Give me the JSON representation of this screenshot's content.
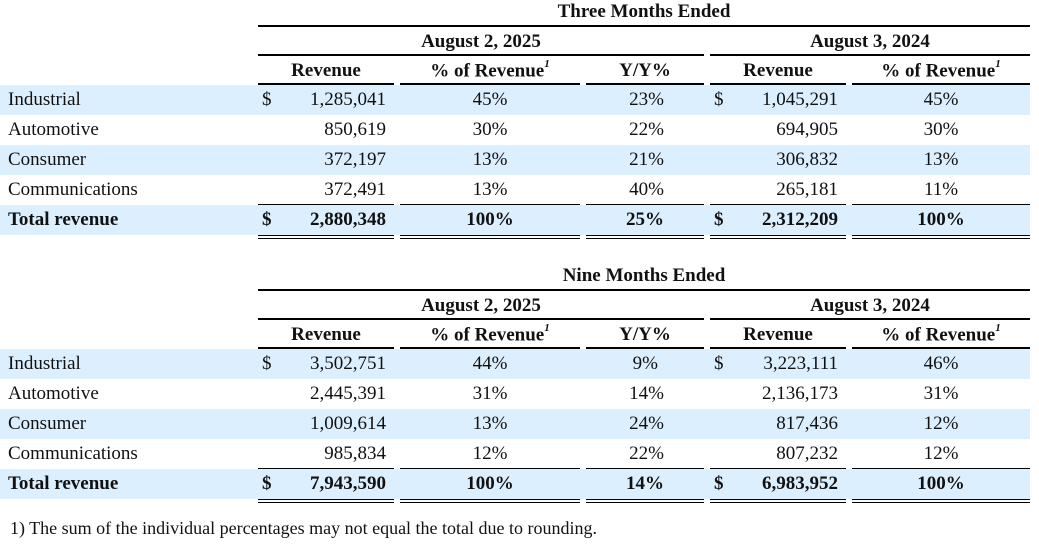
{
  "three_months": {
    "title": "Three Months Ended",
    "period_a": "August 2, 2025",
    "period_b": "August 3, 2024",
    "col_revenue": "Revenue",
    "col_pct": "% of Revenue",
    "col_pct_sup": "1",
    "col_yy": "Y/Y%",
    "currency": "$",
    "rows": [
      {
        "label": "Industrial",
        "rev_a": "1,285,041",
        "pct_a": "45%",
        "yy": "23%",
        "rev_b": "1,045,291",
        "pct_b": "45%"
      },
      {
        "label": "Automotive",
        "rev_a": "850,619",
        "pct_a": "30%",
        "yy": "22%",
        "rev_b": "694,905",
        "pct_b": "30%"
      },
      {
        "label": "Consumer",
        "rev_a": "372,197",
        "pct_a": "13%",
        "yy": "21%",
        "rev_b": "306,832",
        "pct_b": "13%"
      },
      {
        "label": "Communications",
        "rev_a": "372,491",
        "pct_a": "13%",
        "yy": "40%",
        "rev_b": "265,181",
        "pct_b": "11%"
      }
    ],
    "total": {
      "label": "Total revenue",
      "rev_a": "2,880,348",
      "pct_a": "100%",
      "yy": "25%",
      "rev_b": "2,312,209",
      "pct_b": "100%"
    }
  },
  "nine_months": {
    "title": "Nine Months Ended",
    "period_a": "August 2, 2025",
    "period_b": "August 3, 2024",
    "col_revenue": "Revenue",
    "col_pct": "% of Revenue",
    "col_pct_sup": "1",
    "col_yy": "Y/Y%",
    "currency": "$",
    "rows": [
      {
        "label": "Industrial",
        "rev_a": "3,502,751",
        "pct_a": "44%",
        "yy": "9%",
        "rev_b": "3,223,111",
        "pct_b": "46%"
      },
      {
        "label": "Automotive",
        "rev_a": "2,445,391",
        "pct_a": "31%",
        "yy": "14%",
        "rev_b": "2,136,173",
        "pct_b": "31%"
      },
      {
        "label": "Consumer",
        "rev_a": "1,009,614",
        "pct_a": "13%",
        "yy": "24%",
        "rev_b": "817,436",
        "pct_b": "12%"
      },
      {
        "label": "Communications",
        "rev_a": "985,834",
        "pct_a": "12%",
        "yy": "22%",
        "rev_b": "807,232",
        "pct_b": "12%"
      }
    ],
    "total": {
      "label": "Total revenue",
      "rev_a": "7,943,590",
      "pct_a": "100%",
      "yy": "14%",
      "rev_b": "6,983,952",
      "pct_b": "100%"
    }
  },
  "footnote": "1) The sum of the individual percentages may not equal the total due to rounding.",
  "colors": {
    "row_shade": "#dcefff",
    "text": "#111111"
  }
}
